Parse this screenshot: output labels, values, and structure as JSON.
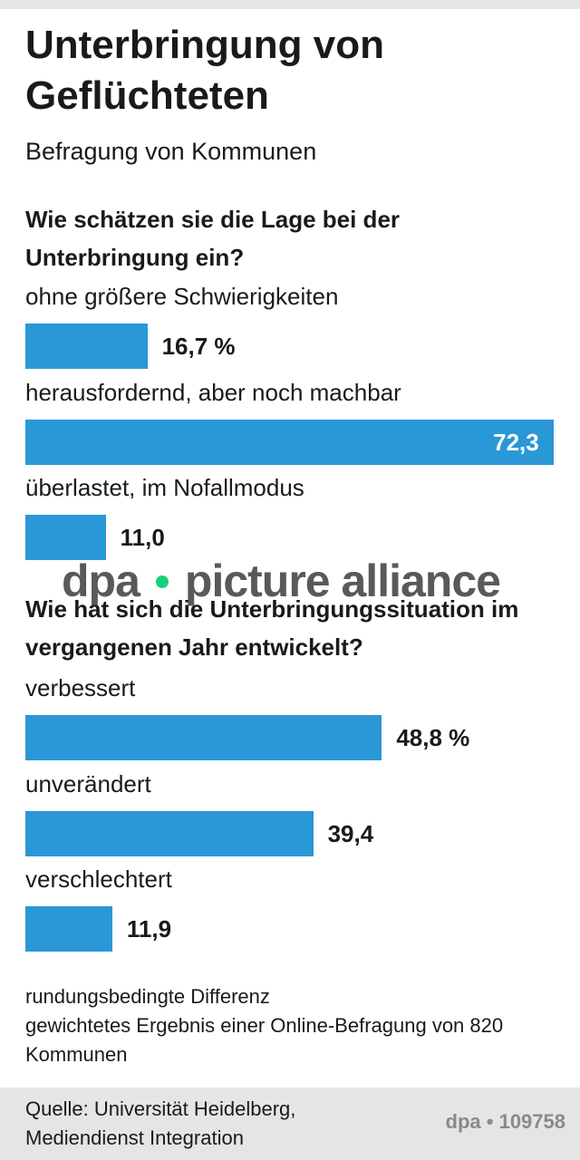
{
  "title": "Unterbringung von Geflüchteten",
  "subtitle": "Befragung von Kommunen",
  "chart_data": [
    {
      "type": "bar",
      "orientation": "horizontal",
      "title": "Wie schätzen sie die Lage bei der Unterbringung ein?",
      "categories": [
        "ohne größere Schwierigkeiten",
        "herausfordernd, aber noch machbar",
        "überlastet, im Nofallmodus"
      ],
      "values": [
        16.7,
        72.3,
        11.0
      ],
      "value_labels": [
        "16,7 %",
        "72,3",
        "11,0"
      ],
      "color": "#2a97d6"
    },
    {
      "type": "bar",
      "orientation": "horizontal",
      "title": "Wie hat sich die Unterbringungssituation im vergangenen Jahr entwickelt?",
      "categories": [
        "verbessert",
        "unverändert",
        "verschlechtert"
      ],
      "values": [
        48.8,
        39.4,
        11.9
      ],
      "value_labels": [
        "48,8 %",
        "39,4",
        "11,9"
      ],
      "color": "#2a97d6"
    }
  ],
  "notes": [
    "rundungsbedingte Differenz",
    "gewichtetes Ergebnis einer Online-Befragung von 820 Kommunen"
  ],
  "source": "Quelle: Universität Heidelberg, Mediendienst Integration",
  "credit": "dpa • 109758",
  "watermark": [
    "dpa",
    "picture alliance"
  ]
}
